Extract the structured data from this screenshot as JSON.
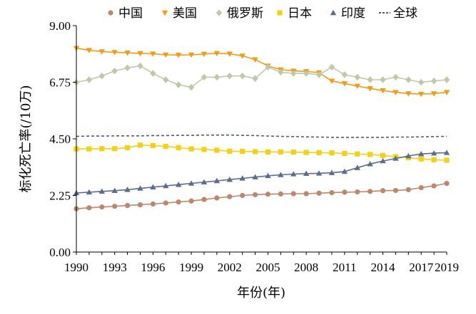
{
  "chart_data": {
    "type": "line",
    "xlabel": "年份(年)",
    "ylabel": "标化死亡率(/10万)",
    "ylim": [
      0,
      9
    ],
    "xlim": [
      1990,
      2019
    ],
    "yticks": [
      "0.00",
      "2.25",
      "4.50",
      "6.75",
      "9.00"
    ],
    "xticks": [
      "1990",
      "1993",
      "1996",
      "1999",
      "2002",
      "2005",
      "2008",
      "2011",
      "2014",
      "2017",
      "2019"
    ],
    "legend_position": "top",
    "grid": false,
    "x": [
      1990,
      1991,
      1992,
      1993,
      1994,
      1995,
      1996,
      1997,
      1998,
      1999,
      2000,
      2001,
      2002,
      2003,
      2004,
      2005,
      2006,
      2007,
      2008,
      2009,
      2010,
      2011,
      2012,
      2013,
      2014,
      2015,
      2016,
      2017,
      2018,
      2019
    ],
    "series": [
      {
        "name": "中国",
        "color": "#c0866a",
        "marker": "circle",
        "values": [
          1.72,
          1.76,
          1.79,
          1.82,
          1.85,
          1.88,
          1.91,
          1.95,
          1.99,
          2.03,
          2.09,
          2.15,
          2.2,
          2.25,
          2.28,
          2.3,
          2.31,
          2.32,
          2.32,
          2.34,
          2.36,
          2.38,
          2.39,
          2.41,
          2.44,
          2.45,
          2.48,
          2.56,
          2.63,
          2.73
        ]
      },
      {
        "name": "美国",
        "color": "#f39c12",
        "marker": "triangle-down",
        "values": [
          8.1,
          8.02,
          7.97,
          7.94,
          7.92,
          7.9,
          7.88,
          7.84,
          7.83,
          7.84,
          7.87,
          7.9,
          7.88,
          7.8,
          7.65,
          7.4,
          7.25,
          7.2,
          7.18,
          7.13,
          6.8,
          6.7,
          6.6,
          6.5,
          6.42,
          6.35,
          6.3,
          6.28,
          6.3,
          6.35
        ]
      },
      {
        "name": "俄罗斯",
        "color": "#bfc9a8",
        "marker": "diamond",
        "values": [
          6.75,
          6.85,
          7.0,
          7.2,
          7.32,
          7.4,
          7.1,
          6.85,
          6.65,
          6.55,
          6.95,
          6.95,
          7.0,
          7.0,
          6.9,
          7.35,
          7.15,
          7.1,
          7.1,
          7.05,
          7.35,
          7.05,
          6.95,
          6.85,
          6.85,
          6.95,
          6.85,
          6.75,
          6.8,
          6.85
        ]
      },
      {
        "name": "日本",
        "color": "#f5d10f",
        "marker": "square",
        "values": [
          4.1,
          4.1,
          4.11,
          4.11,
          4.15,
          4.25,
          4.23,
          4.2,
          4.15,
          4.1,
          4.08,
          4.05,
          4.01,
          4.0,
          3.99,
          3.98,
          3.98,
          3.97,
          3.96,
          3.95,
          3.94,
          3.92,
          3.9,
          3.88,
          3.84,
          3.79,
          3.75,
          3.7,
          3.67,
          3.65
        ]
      },
      {
        "name": "印度",
        "color": "#5a6d91",
        "marker": "triangle-up",
        "values": [
          2.35,
          2.38,
          2.41,
          2.44,
          2.48,
          2.53,
          2.58,
          2.63,
          2.68,
          2.73,
          2.78,
          2.83,
          2.88,
          2.93,
          2.98,
          3.03,
          3.07,
          3.1,
          3.12,
          3.13,
          3.15,
          3.2,
          3.35,
          3.5,
          3.62,
          3.72,
          3.82,
          3.9,
          3.93,
          3.95
        ]
      },
      {
        "name": "全球",
        "color": "#505a70",
        "marker": "none",
        "dashed": true,
        "values": [
          4.6,
          4.61,
          4.61,
          4.62,
          4.62,
          4.62,
          4.63,
          4.63,
          4.64,
          4.64,
          4.65,
          4.65,
          4.65,
          4.64,
          4.63,
          4.61,
          4.6,
          4.59,
          4.58,
          4.57,
          4.56,
          4.56,
          4.56,
          4.56,
          4.56,
          4.57,
          4.57,
          4.58,
          4.59,
          4.6
        ]
      }
    ]
  }
}
